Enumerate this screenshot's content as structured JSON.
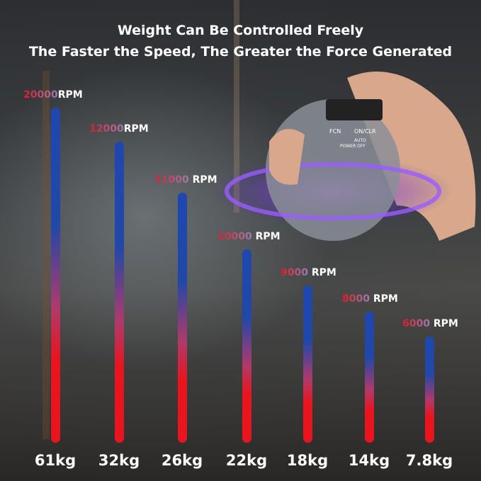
{
  "title_line1": "Weight Can Be Controlled Freely",
  "title_line2": "The Faster the Speed, The Greater the Force Generated",
  "product": {
    "button_fcn": "FCN",
    "button_onclr": "ON/CLR",
    "label_auto": "AUTO",
    "label_power_off": "POWER OFF"
  },
  "colors": {
    "bar_top": "#1f47b0",
    "bar_bottom": "#e8141e",
    "text": "#ffffff"
  },
  "chart_data": {
    "type": "bar",
    "categories": [
      "61kg",
      "32kg",
      "26kg",
      "22kg",
      "18kg",
      "14kg",
      "7.8kg"
    ],
    "values": [
      20000,
      12000,
      11000,
      10000,
      9000,
      8000,
      6000
    ],
    "value_labels": [
      "20000",
      "12000",
      "11000",
      "10000",
      "9000",
      "8000",
      "6000"
    ],
    "unit": "RPM",
    "grid": false
  }
}
